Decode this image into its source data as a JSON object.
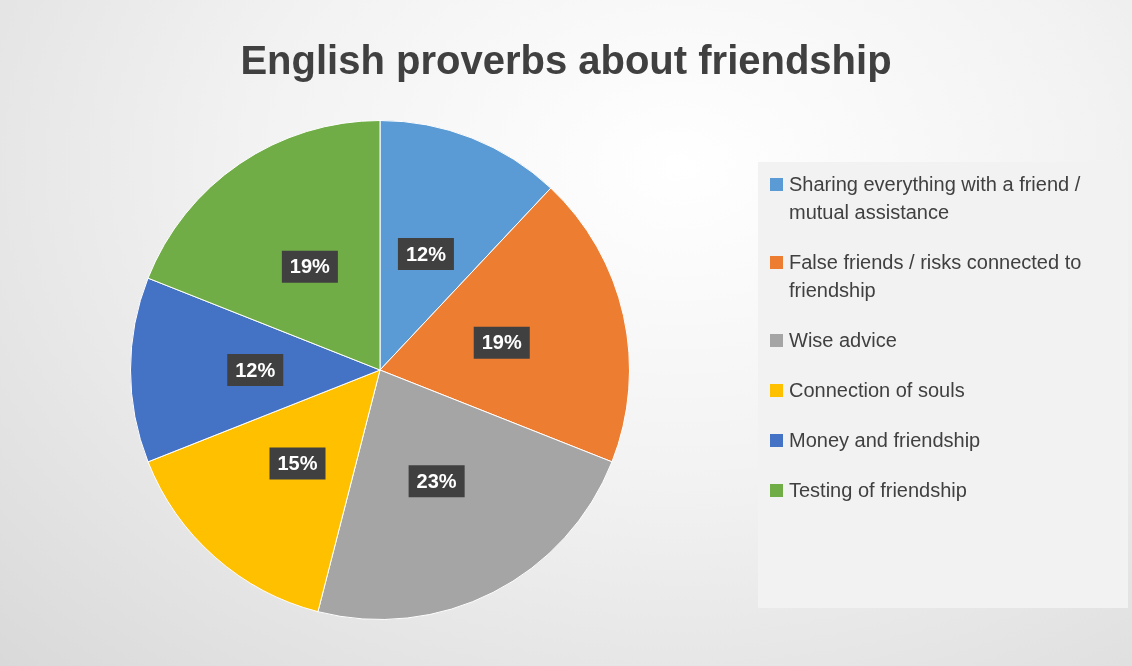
{
  "chart_data": {
    "type": "pie",
    "title": "English proverbs about friendship",
    "categories": [
      "Sharing everything with a friend / mutual assistance",
      "False friends / risks connected to friendship",
      "Wise advice",
      "Connection of souls",
      "Money and friendship",
      "Testing of friendship"
    ],
    "values": [
      12,
      19,
      23,
      15,
      12,
      19
    ],
    "colors": [
      "#5b9bd5",
      "#ed7d31",
      "#a5a5a5",
      "#ffc000",
      "#4472c4",
      "#70ad47"
    ],
    "value_labels": [
      "12%",
      "19%",
      "23%",
      "15%",
      "12%",
      "19%"
    ],
    "legend": "right"
  }
}
